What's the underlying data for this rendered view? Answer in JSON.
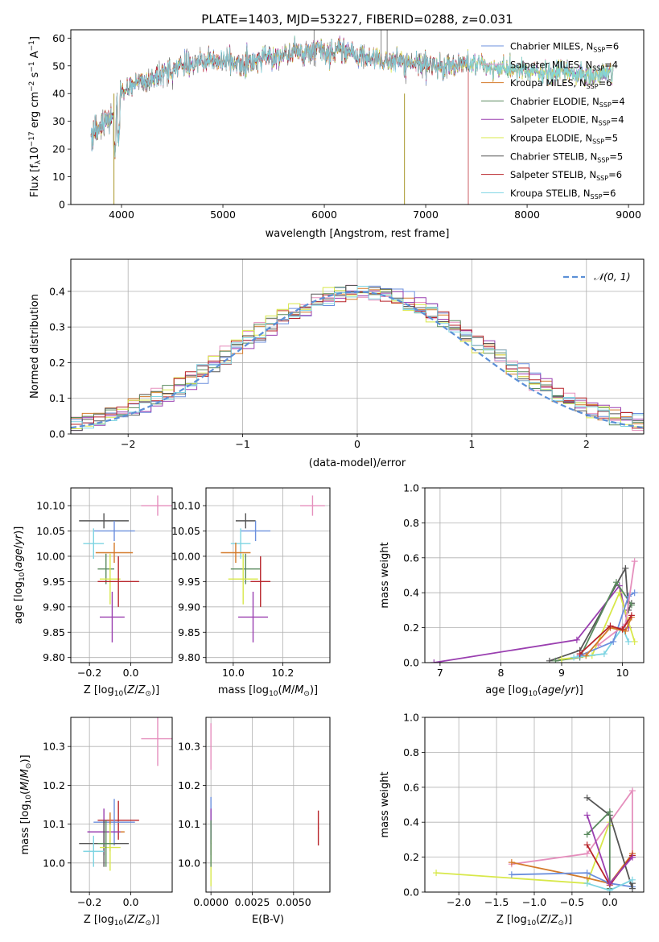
{
  "colors": {
    "Chabrier MILES": "#6b8fdd",
    "Salpeter MILES": "#e58fbd",
    "Kroupa MILES": "#d47a2a",
    "Chabrier ELODIE": "#5a8a5e",
    "Salpeter ELODIE": "#9a3fb0",
    "Kroupa ELODIE": "#d8e84a",
    "Chabrier STELIB": "#555555",
    "Salpeter STELIB": "#b8242a",
    "Kroupa STELIB": "#7dd4e2",
    "normal": "#5b8fd6"
  },
  "chart_data": [
    {
      "id": "spectrum",
      "type": "line",
      "title": "PLATE=1403, MJD=53227, FIBERID=0288, z=0.031",
      "xlabel": "wavelength [Angstrom, rest frame]",
      "ylabel": "Flux [f_λ10^-17 erg cm^-2 s^-1 A^-1]",
      "xlim": [
        3500,
        9150
      ],
      "ylim": [
        0,
        63
      ],
      "xticks": [
        "4000",
        "5000",
        "6000",
        "7000",
        "8000",
        "9000"
      ],
      "yticks": [
        "0",
        "10",
        "20",
        "30",
        "40",
        "50",
        "60"
      ],
      "legend_position": "top-right",
      "legend": [
        {
          "name": "Chabrier MILES",
          "nssp": "6"
        },
        {
          "name": "Salpeter MILES",
          "nssp": "4"
        },
        {
          "name": "Kroupa MILES",
          "nssp": "6"
        },
        {
          "name": "Chabrier ELODIE",
          "nssp": "4"
        },
        {
          "name": "Salpeter ELODIE",
          "nssp": "4"
        },
        {
          "name": "Kroupa ELODIE",
          "nssp": "5"
        },
        {
          "name": "Chabrier STELIB",
          "nssp": "5"
        },
        {
          "name": "Salpeter STELIB",
          "nssp": "6"
        },
        {
          "name": "Kroupa STELIB",
          "nssp": "6"
        }
      ],
      "continuum": [
        [
          3700,
          28
        ],
        [
          3800,
          30
        ],
        [
          3900,
          31
        ],
        [
          3950,
          36
        ],
        [
          4000,
          40
        ],
        [
          4100,
          43
        ],
        [
          4200,
          45
        ],
        [
          4300,
          44
        ],
        [
          4400,
          47
        ],
        [
          4500,
          49
        ],
        [
          4700,
          51
        ],
        [
          4900,
          52
        ],
        [
          5000,
          51
        ],
        [
          5100,
          52
        ],
        [
          5200,
          50
        ],
        [
          5400,
          53
        ],
        [
          5600,
          54
        ],
        [
          5800,
          55
        ],
        [
          5900,
          56
        ],
        [
          6000,
          55
        ],
        [
          6200,
          55
        ],
        [
          6400,
          53
        ],
        [
          6600,
          52
        ],
        [
          6800,
          51
        ],
        [
          7000,
          50
        ],
        [
          7200,
          50
        ],
        [
          7400,
          51
        ],
        [
          7600,
          50
        ],
        [
          7700,
          48
        ],
        [
          7800,
          49
        ],
        [
          8000,
          48
        ],
        [
          8200,
          47
        ],
        [
          8400,
          48
        ],
        [
          8600,
          46
        ],
        [
          8700,
          47
        ],
        [
          8850,
          48
        ]
      ]
    },
    {
      "id": "residuals",
      "type": "line",
      "xlabel": "(data-model)/error",
      "ylabel": "Normed distribution",
      "xlim": [
        -2.5,
        2.5
      ],
      "ylim": [
        0,
        0.49
      ],
      "xticks": [
        "−2",
        "−1",
        "0",
        "1",
        "2"
      ],
      "yticks": [
        "0.0",
        "0.1",
        "0.2",
        "0.3",
        "0.4"
      ],
      "legend_label": "𝒩(0, 1)",
      "legend_position": "top-right"
    },
    {
      "id": "Z_age",
      "type": "scatter",
      "xlabel": "Z [log10(Z/Z⊙)]",
      "ylabel": "age  [log10(age/yr)]",
      "xlim": [
        -0.29,
        0.2
      ],
      "ylim": [
        9.79,
        10.135
      ],
      "xticks": [
        "−0.2",
        "0.0"
      ],
      "yticks": [
        "9.80",
        "9.85",
        "9.90",
        "9.95",
        "10.00",
        "10.05",
        "10.10"
      ],
      "points": [
        {
          "s": "Salpeter MILES",
          "x": 0.13,
          "xe": 0.08,
          "y": 10.1,
          "ye": 0.02
        },
        {
          "s": "Chabrier STELIB",
          "x": -0.13,
          "xe": 0.12,
          "y": 10.07,
          "ye": 0.015
        },
        {
          "s": "Chabrier MILES",
          "x": -0.08,
          "xe": 0.1,
          "y": 10.05,
          "ye": 0.02
        },
        {
          "s": "Kroupa STELIB",
          "x": -0.18,
          "xe": 0.05,
          "y": 10.025,
          "ye": 0.03
        },
        {
          "s": "Kroupa MILES",
          "x": -0.08,
          "xe": 0.09,
          "y": 10.007,
          "ye": 0.02
        },
        {
          "s": "Chabrier ELODIE",
          "x": -0.12,
          "xe": 0.04,
          "y": 9.975,
          "ye": 0.03
        },
        {
          "s": "Kroupa ELODIE",
          "x": -0.1,
          "xe": 0.05,
          "y": 9.955,
          "ye": 0.05
        },
        {
          "s": "Salpeter STELIB",
          "x": -0.06,
          "xe": 0.1,
          "y": 9.95,
          "ye": 0.05
        },
        {
          "s": "Salpeter ELODIE",
          "x": -0.09,
          "xe": 0.06,
          "y": 9.88,
          "ye": 0.05
        }
      ]
    },
    {
      "id": "mass_age",
      "type": "scatter",
      "xlabel": "mass [log10(M/M⊙)]",
      "ylabel": "",
      "xlim": [
        9.89,
        10.39
      ],
      "ylim": [
        9.79,
        10.135
      ],
      "xticks": [
        "10.0",
        "10.2"
      ],
      "yticks": [
        "9.80",
        "9.85",
        "9.90",
        "9.95",
        "10.00",
        "10.05",
        "10.10"
      ],
      "points": [
        {
          "s": "Salpeter MILES",
          "x": 10.32,
          "xe": 0.05,
          "y": 10.1,
          "ye": 0.02
        },
        {
          "s": "Chabrier STELIB",
          "x": 10.05,
          "xe": 0.04,
          "y": 10.07,
          "ye": 0.015
        },
        {
          "s": "Chabrier MILES",
          "x": 10.09,
          "xe": 0.06,
          "y": 10.05,
          "ye": 0.02
        },
        {
          "s": "Kroupa STELIB",
          "x": 10.03,
          "xe": 0.04,
          "y": 10.025,
          "ye": 0.03
        },
        {
          "s": "Kroupa MILES",
          "x": 10.01,
          "xe": 0.06,
          "y": 10.007,
          "ye": 0.02
        },
        {
          "s": "Chabrier ELODIE",
          "x": 10.05,
          "xe": 0.06,
          "y": 9.975,
          "ye": 0.03
        },
        {
          "s": "Kroupa ELODIE",
          "x": 10.04,
          "xe": 0.06,
          "y": 9.955,
          "ye": 0.05
        },
        {
          "s": "Salpeter STELIB",
          "x": 10.11,
          "xe": 0.04,
          "y": 9.95,
          "ye": 0.05
        },
        {
          "s": "Salpeter ELODIE",
          "x": 10.08,
          "xe": 0.06,
          "y": 9.88,
          "ye": 0.05
        }
      ]
    },
    {
      "id": "age_weight",
      "type": "line",
      "xlabel": "age  [log10(age/yr)]",
      "ylabel": "mass weight",
      "xlim": [
        6.75,
        10.35
      ],
      "ylim": [
        0,
        1.0
      ],
      "xticks": [
        "7",
        "8",
        "9",
        "10"
      ],
      "yticks": [
        "0.0",
        "0.2",
        "0.4",
        "0.6",
        "0.8",
        "1.0"
      ],
      "series": [
        {
          "s": "Salpeter ELODIE",
          "x": [
            6.9,
            9.25,
            9.95,
            10.1
          ],
          "y": [
            0.0,
            0.13,
            0.44,
            0.2
          ]
        },
        {
          "s": "Chabrier STELIB",
          "x": [
            8.8,
            9.3,
            10.05,
            10.1,
            10.15
          ],
          "y": [
            0.01,
            0.07,
            0.54,
            0.3,
            0.34
          ]
        },
        {
          "s": "Chabrier ELODIE",
          "x": [
            8.9,
            9.3,
            9.9,
            10.15
          ],
          "y": [
            0.01,
            0.03,
            0.46,
            0.33
          ]
        },
        {
          "s": "Kroupa ELODIE",
          "x": [
            9.0,
            9.5,
            9.95,
            10.2
          ],
          "y": [
            0.02,
            0.04,
            0.4,
            0.12
          ]
        },
        {
          "s": "Kroupa STELIB",
          "x": [
            9.2,
            9.7,
            10.0,
            10.1
          ],
          "y": [
            0.03,
            0.05,
            0.2,
            0.12
          ]
        },
        {
          "s": "Chabrier MILES",
          "x": [
            9.3,
            9.85,
            10.1,
            10.2
          ],
          "y": [
            0.04,
            0.12,
            0.38,
            0.4
          ]
        },
        {
          "s": "Salpeter MILES",
          "x": [
            9.6,
            10.05,
            10.2
          ],
          "y": [
            0.1,
            0.22,
            0.58
          ]
        },
        {
          "s": "Kroupa MILES",
          "x": [
            9.4,
            9.8,
            10.05,
            10.15
          ],
          "y": [
            0.04,
            0.2,
            0.18,
            0.26
          ]
        },
        {
          "s": "Salpeter STELIB",
          "x": [
            9.3,
            9.8,
            10.0,
            10.15
          ],
          "y": [
            0.05,
            0.21,
            0.19,
            0.27
          ]
        }
      ]
    },
    {
      "id": "Z_mass",
      "type": "scatter",
      "xlabel": "Z [log10(Z/Z⊙)]",
      "ylabel": "mass [log10(M/M⊙)]",
      "xlim": [
        -0.29,
        0.2
      ],
      "ylim": [
        9.925,
        10.375
      ],
      "xticks": [
        "−0.2",
        "0.0"
      ],
      "yticks": [
        "10.0",
        "10.1",
        "10.2",
        "10.3"
      ],
      "points": [
        {
          "s": "Salpeter MILES",
          "x": 0.13,
          "xe": 0.08,
          "y": 10.32,
          "ye": 0.07
        },
        {
          "s": "Salpeter STELIB",
          "x": -0.06,
          "xe": 0.1,
          "y": 10.11,
          "ye": 0.05
        },
        {
          "s": "Chabrier MILES",
          "x": -0.08,
          "xe": 0.1,
          "y": 10.105,
          "ye": 0.06
        },
        {
          "s": "Kroupa MILES",
          "x": -0.1,
          "xe": 0.07,
          "y": 10.08,
          "ye": 0.05
        },
        {
          "s": "Salpeter ELODIE",
          "x": -0.13,
          "xe": 0.08,
          "y": 10.08,
          "ye": 0.06
        },
        {
          "s": "Chabrier STELIB",
          "x": -0.13,
          "xe": 0.12,
          "y": 10.05,
          "ye": 0.06
        },
        {
          "s": "Kroupa ELODIE",
          "x": -0.1,
          "xe": 0.05,
          "y": 10.04,
          "ye": 0.06
        },
        {
          "s": "Chabrier ELODIE",
          "x": -0.12,
          "xe": 0.04,
          "y": 10.05,
          "ye": 0.06
        },
        {
          "s": "Kroupa STELIB",
          "x": -0.18,
          "xe": 0.05,
          "y": 10.03,
          "ye": 0.04
        }
      ]
    },
    {
      "id": "ebv_mass",
      "type": "scatter",
      "xlabel": "E(B-V)",
      "ylabel": "",
      "xlim": [
        -0.0003,
        0.0072
      ],
      "ylim": [
        9.925,
        10.375
      ],
      "xticks": [
        "0.0000",
        "0.0025",
        "0.0050"
      ],
      "xtickvals": [
        0,
        0.0025,
        0.005
      ],
      "yticks": [
        "10.0",
        "10.1",
        "10.2",
        "10.3"
      ],
      "points": [
        {
          "s": "Salpeter MILES",
          "x": 0.0,
          "xe": 3e-05,
          "y": 10.3,
          "ye": 0.06
        },
        {
          "s": "Chabrier MILES",
          "x": 0.0,
          "xe": 3e-05,
          "y": 10.11,
          "ye": 0.06
        },
        {
          "s": "Salpeter ELODIE",
          "x": 0.0,
          "xe": 3e-05,
          "y": 10.08,
          "ye": 0.06
        },
        {
          "s": "Kroupa ELODIE",
          "x": 0.0,
          "xe": 3e-05,
          "y": 10.0,
          "ye": 0.06
        },
        {
          "s": "Chabrier ELODIE",
          "x": 0.0,
          "xe": 3e-05,
          "y": 10.05,
          "ye": 0.06
        },
        {
          "s": "Salpeter STELIB",
          "x": 0.0065,
          "xe": 3e-05,
          "y": 10.09,
          "ye": 0.045
        }
      ]
    },
    {
      "id": "Z_weight",
      "type": "line",
      "xlabel": "Z [log10(Z/Z⊙)]",
      "ylabel": "mass weight",
      "xlim": [
        -2.45,
        0.45
      ],
      "ylim": [
        0,
        1.0
      ],
      "xticks": [
        "−2.0",
        "−1.5",
        "−1.0",
        "−0.5",
        "0.0"
      ],
      "xtickvals": [
        -2.0,
        -1.5,
        -1.0,
        -0.5,
        0.0
      ],
      "yticks": [
        "0.0",
        "0.2",
        "0.4",
        "0.6",
        "0.8",
        "1.0"
      ],
      "series": [
        {
          "s": "Kroupa ELODIE",
          "x": [
            -2.3,
            -0.3,
            0.0,
            0.0
          ],
          "y": [
            0.11,
            0.05,
            0.4,
            0.38
          ]
        },
        {
          "s": "Salpeter MILES",
          "x": [
            -1.3,
            -0.3,
            0.3,
            0.3
          ],
          "y": [
            0.16,
            0.22,
            0.58,
            0.2
          ]
        },
        {
          "s": "Kroupa MILES",
          "x": [
            -1.3,
            -0.3,
            0.0,
            0.3
          ],
          "y": [
            0.17,
            0.08,
            0.05,
            0.22
          ]
        },
        {
          "s": "Chabrier MILES",
          "x": [
            -1.3,
            -0.3,
            0.0,
            0.3
          ],
          "y": [
            0.1,
            0.11,
            0.05,
            0.03
          ]
        },
        {
          "s": "Chabrier STELIB",
          "x": [
            -0.3,
            0.0,
            0.3,
            0.3
          ],
          "y": [
            0.54,
            0.44,
            0.02,
            0.05
          ]
        },
        {
          "s": "Chabrier ELODIE",
          "x": [
            -0.3,
            0.0,
            0.0
          ],
          "y": [
            0.33,
            0.46,
            0.02
          ]
        },
        {
          "s": "Salpeter STELIB",
          "x": [
            -0.3,
            0.0,
            0.3
          ],
          "y": [
            0.27,
            0.04,
            0.21
          ]
        },
        {
          "s": "Salpeter ELODIE",
          "x": [
            -0.3,
            0.0,
            0.3
          ],
          "y": [
            0.44,
            0.05,
            0.2
          ]
        },
        {
          "s": "Kroupa STELIB",
          "x": [
            -0.3,
            0.0,
            0.3
          ],
          "y": [
            0.05,
            0.01,
            0.07
          ]
        }
      ]
    }
  ]
}
